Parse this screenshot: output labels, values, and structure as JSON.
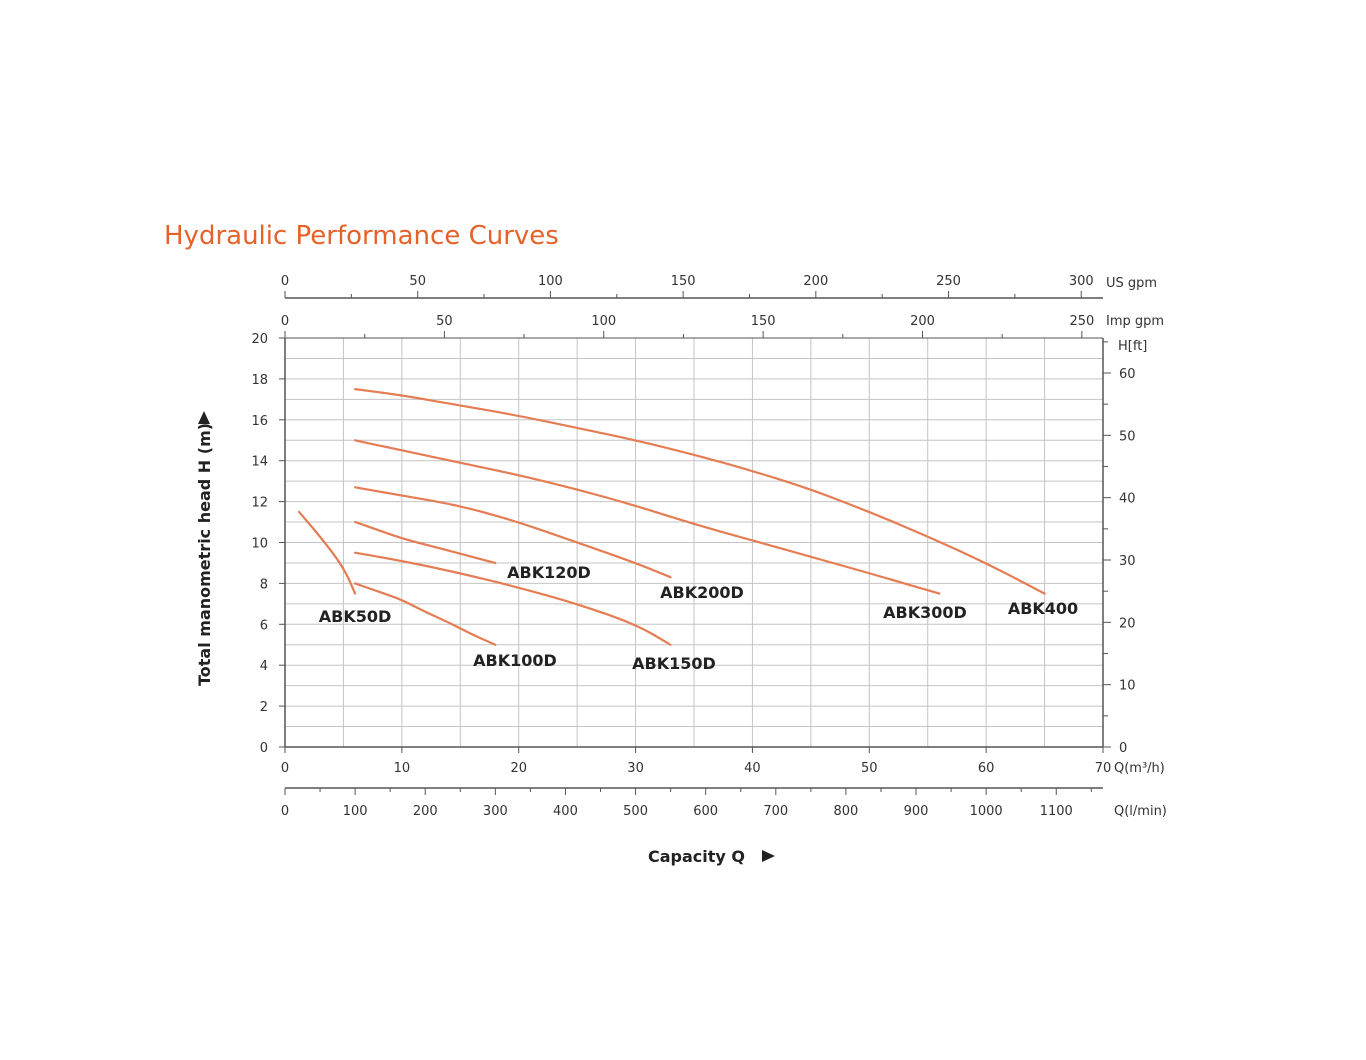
{
  "chart_data": {
    "type": "line",
    "title": "Hydraulic Performance Curves",
    "xlabel": "Capacity Q",
    "ylabel": "Total manometric head H (m)",
    "xlim": [
      0,
      70
    ],
    "ylim": [
      0,
      20
    ],
    "x_ticks": [
      0,
      10,
      20,
      30,
      40,
      50,
      60,
      70
    ],
    "y_ticks": [
      0,
      2,
      4,
      6,
      8,
      10,
      12,
      14,
      16,
      18,
      20
    ],
    "x_unit": "Q(m³/h)",
    "grid": true,
    "legend": "none",
    "secondary_axes": {
      "us_gpm": {
        "unit": "US gpm",
        "ticks": [
          0,
          50,
          100,
          150,
          200,
          250,
          300
        ]
      },
      "imp_gpm": {
        "unit": "Imp gpm",
        "ticks": [
          0,
          50,
          100,
          150,
          200,
          250
        ]
      },
      "l_min": {
        "unit": "Q(l/min)",
        "ticks": [
          0,
          100,
          200,
          300,
          400,
          500,
          600,
          700,
          800,
          900,
          1000,
          1100
        ]
      },
      "h_ft": {
        "unit": "H[ft]",
        "ticks": [
          0,
          10,
          20,
          30,
          40,
          50,
          60
        ]
      }
    },
    "series": [
      {
        "name": "ABK50D",
        "x": [
          1.2,
          3,
          5,
          6
        ],
        "y": [
          11.5,
          10.3,
          8.8,
          7.5
        ]
      },
      {
        "name": "ABK100D",
        "x": [
          6,
          8,
          10,
          12,
          14,
          16,
          18
        ],
        "y": [
          8.0,
          7.6,
          7.2,
          6.6,
          6.1,
          5.5,
          5.0
        ]
      },
      {
        "name": "ABK120D",
        "x": [
          6,
          8,
          10,
          12,
          14,
          16,
          18
        ],
        "y": [
          11.0,
          10.6,
          10.2,
          9.9,
          9.6,
          9.3,
          9.0
        ]
      },
      {
        "name": "ABK150D",
        "x": [
          6,
          10,
          15,
          20,
          25,
          30,
          33
        ],
        "y": [
          9.5,
          9.1,
          8.5,
          7.8,
          7.0,
          6.0,
          5.0
        ]
      },
      {
        "name": "ABK200D",
        "x": [
          6,
          10,
          15,
          20,
          25,
          30,
          33
        ],
        "y": [
          12.7,
          12.3,
          11.8,
          11.0,
          10.0,
          9.0,
          8.3
        ]
      },
      {
        "name": "ABK300D",
        "x": [
          6,
          10,
          15,
          20,
          25,
          30,
          35,
          40,
          45,
          50,
          56
        ],
        "y": [
          15.0,
          14.5,
          13.9,
          13.3,
          12.6,
          11.8,
          10.9,
          10.1,
          9.3,
          8.5,
          7.5
        ]
      },
      {
        "name": "ABK400",
        "x": [
          6,
          10,
          15,
          20,
          25,
          30,
          35,
          40,
          45,
          50,
          55,
          60,
          65
        ],
        "y": [
          17.5,
          17.2,
          16.7,
          16.2,
          15.6,
          15.0,
          14.3,
          13.5,
          12.6,
          11.5,
          10.3,
          9.0,
          7.5
        ]
      }
    ],
    "series_color": "#e57d54"
  }
}
